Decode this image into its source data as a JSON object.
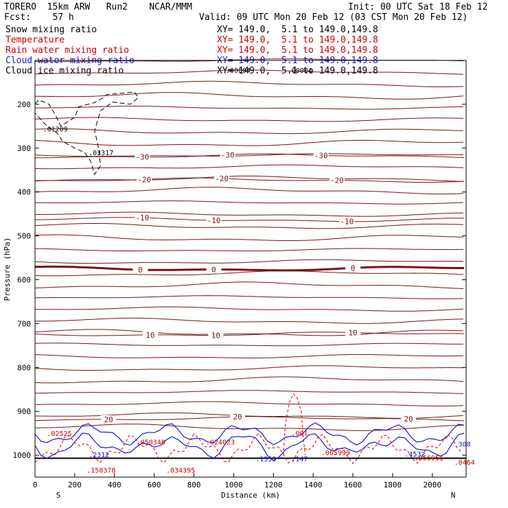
{
  "header": {
    "model": "TORERO  15km ARW   Run2    NCAR/MMM",
    "init": "Init: 00 UTC Sat 18 Feb 12",
    "fcst": "Fcst:    57 h",
    "valid": "Valid: 09 UTC Mon 20 Feb 12 (03 CST Mon 20 Feb 12)"
  },
  "legend": [
    {
      "label": "Snow mixing ratio",
      "xy": "XY= 149.0,  5.1 to 149.0,149.8",
      "color": "#000000"
    },
    {
      "label": "Temperature",
      "xy": "XY= 149.0,  5.1 to 149.0,149.8",
      "color": "#cc0000"
    },
    {
      "label": "Rain water mixing ratio",
      "xy": "XY= 149.0,  5.1 to 149.0,149.8",
      "color": "#cc0000"
    },
    {
      "label": "Cloud water mixing ratio",
      "xy": "XY= 149.0,  5.1 to 149.0,149.8",
      "color": "#1a1acc"
    },
    {
      "label": "Cloud ice mixing ratio",
      "xy": "XY= 149.0,  5.1 to 149.0,149.8",
      "color": "#000000"
    }
  ],
  "chart_data": {
    "type": "contour",
    "xlabel": "Distance (km)",
    "ylabel": "Pressure (hPa)",
    "xlim": [
      0,
      2170
    ],
    "ylim": [
      1050,
      100
    ],
    "xticks": [
      0,
      200,
      400,
      600,
      800,
      1000,
      1200,
      1400,
      1600,
      1800,
      2000
    ],
    "yticks": [
      200,
      300,
      400,
      500,
      600,
      700,
      800,
      900,
      1000
    ],
    "left_end": "S",
    "right_end": "N",
    "temperature_isotherms": [
      {
        "value": -30,
        "label_positions_km": [
          540,
          970,
          1440
        ],
        "pressure": 318
      },
      {
        "value": -20,
        "label_positions_km": [
          550,
          940,
          1520
        ],
        "pressure": 373
      },
      {
        "value": -10,
        "label_positions_km": [
          540,
          900,
          1570
        ],
        "pressure": 463
      },
      {
        "value": 0,
        "label_positions_km": [
          530,
          900,
          1600
        ],
        "pressure": 575
      },
      {
        "value": 10,
        "label_positions_km": [
          580,
          910,
          1600
        ],
        "pressure": 724
      },
      {
        "value": 20,
        "label_positions_km": [
          370,
          1020,
          1880
        ],
        "pressure": 917
      }
    ],
    "maxima_labels": [
      {
        "series": "Cloud ice mixing ratio",
        "label": ".01209",
        "x_km": 40,
        "pressure": 262
      },
      {
        "series": "Cloud ice mixing ratio",
        "label": ".03317",
        "x_km": 270,
        "pressure": 316
      },
      {
        "series": "Cloud ice mixing ratio",
        "label": ".00004",
        "x_km": 960,
        "pressure": 128
      },
      {
        "series": "Cloud ice mixing ratio",
        "label": ".00004",
        "x_km": 1270,
        "pressure": 128
      },
      {
        "series": "Rain water mixing ratio",
        "label": ".02525",
        "x_km": 60,
        "pressure": 956
      },
      {
        "series": "Rain water mixing ratio",
        "label": ".050348",
        "x_km": 510,
        "pressure": 976
      },
      {
        "series": "Rain water mixing ratio",
        "label": ".024023",
        "x_km": 860,
        "pressure": 976
      },
      {
        "series": "Rain water mixing ratio",
        "label": ".001",
        "x_km": 1290,
        "pressure": 955
      },
      {
        "series": "Rain water mixing ratio",
        "label": ".065999",
        "x_km": 1440,
        "pressure": 1000
      },
      {
        "series": "Rain water mixing ratio",
        "label": ".066951",
        "x_km": 1910,
        "pressure": 1012
      },
      {
        "series": "Rain water mixing ratio",
        "label": ".0464",
        "x_km": 2110,
        "pressure": 1022
      },
      {
        "series": "Rain water mixing ratio",
        "label": ".150378",
        "x_km": 260,
        "pressure": 1040
      },
      {
        "series": "Rain water mixing ratio",
        "label": ".034395",
        "x_km": 660,
        "pressure": 1040
      },
      {
        "series": "Cloud water mixing ratio",
        "label": ".2312",
        "x_km": 270,
        "pressure": 1005
      },
      {
        "series": "Cloud water mixing ratio",
        "label": ".1353",
        "x_km": 1110,
        "pressure": 1014
      },
      {
        "series": "Cloud water mixing ratio",
        "label": ".147",
        "x_km": 1290,
        "pressure": 1014
      },
      {
        "series": "Cloud water mixing ratio",
        "label": ".4532",
        "x_km": 1860,
        "pressure": 1003
      },
      {
        "series": "Cloud water mixing ratio",
        "label": ".308",
        "x_km": 2110,
        "pressure": 980
      }
    ]
  }
}
